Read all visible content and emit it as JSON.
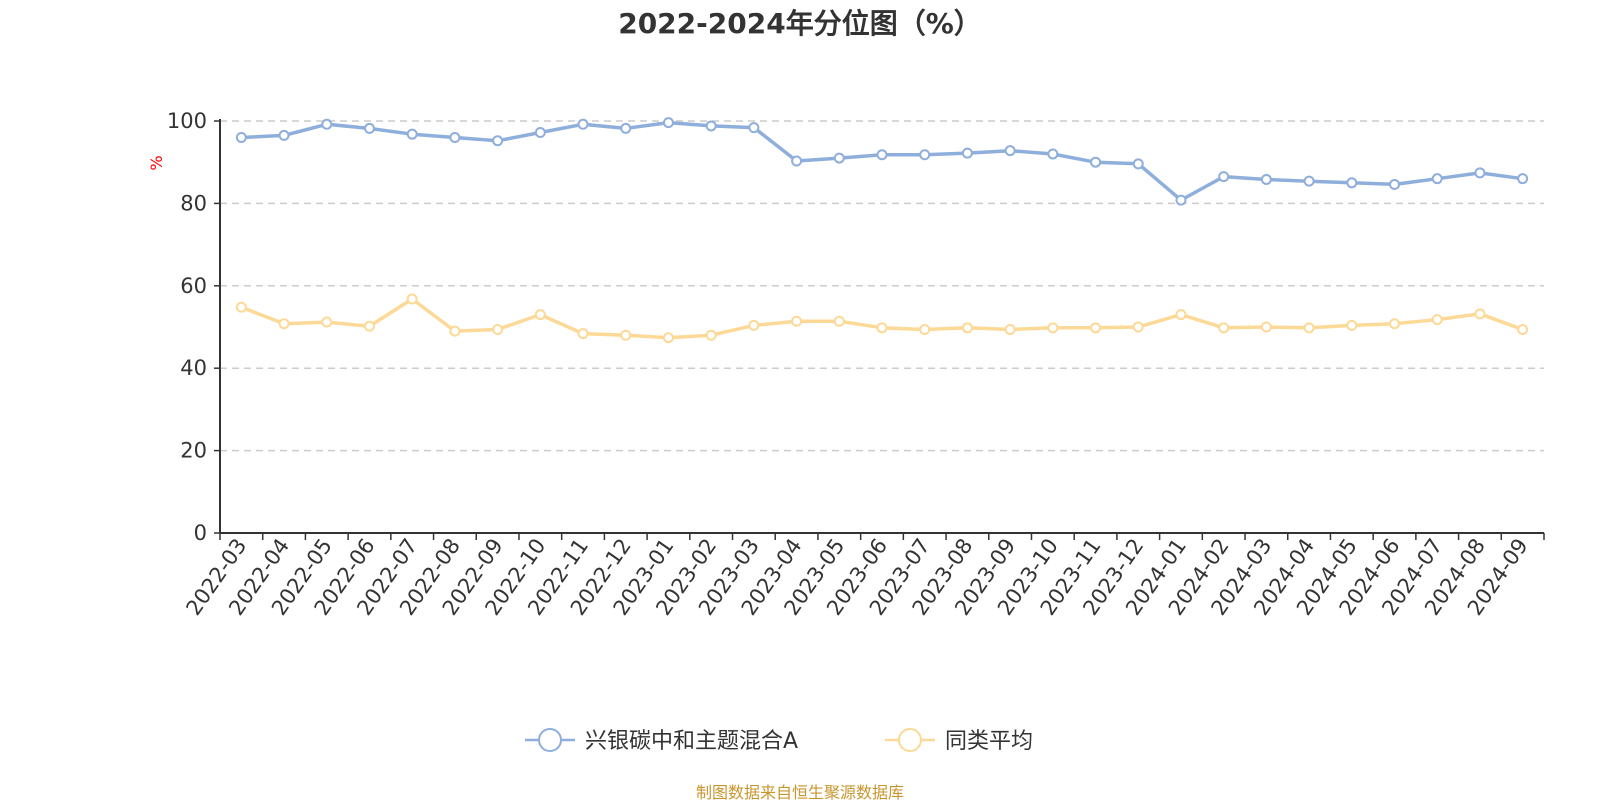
{
  "chart_data": {
    "type": "line",
    "title": "2022-2024年分位图（%）",
    "ylabel": "%",
    "ylim": [
      0,
      100
    ],
    "yticks": [
      0,
      20,
      40,
      60,
      80,
      100
    ],
    "grid": true,
    "legend_position": "bottom-center",
    "categories": [
      "2022-03",
      "2022-04",
      "2022-05",
      "2022-06",
      "2022-07",
      "2022-08",
      "2022-09",
      "2022-10",
      "2022-11",
      "2022-12",
      "2023-01",
      "2023-02",
      "2023-03",
      "2023-04",
      "2023-05",
      "2023-06",
      "2023-07",
      "2023-08",
      "2023-09",
      "2023-10",
      "2023-11",
      "2023-12",
      "2024-01",
      "2024-02",
      "2024-03",
      "2024-04",
      "2024-05",
      "2024-06",
      "2024-07",
      "2024-08",
      "2024-09"
    ],
    "series": [
      {
        "name": "兴银碳中和主题混合A",
        "color": "#8eaedb",
        "values": [
          96.0,
          96.5,
          99.2,
          98.2,
          96.8,
          96.0,
          95.2,
          97.2,
          99.2,
          98.2,
          99.6,
          98.8,
          98.4,
          90.3,
          91.0,
          91.8,
          91.8,
          92.2,
          92.8,
          92.0,
          90.0,
          89.6,
          80.8,
          86.5,
          85.8,
          85.4,
          85.0,
          84.6,
          86.0,
          87.4,
          86.0
        ]
      },
      {
        "name": "同类平均",
        "color": "#fcd996",
        "values": [
          54.8,
          50.8,
          51.2,
          50.2,
          56.8,
          49.0,
          49.4,
          53.0,
          48.4,
          48.0,
          47.4,
          48.0,
          50.4,
          51.4,
          51.4,
          49.8,
          49.4,
          49.8,
          49.4,
          49.8,
          49.8,
          50.0,
          53.0,
          49.8,
          50.0,
          49.8,
          50.4,
          50.8,
          51.8,
          53.2,
          49.4
        ]
      }
    ]
  },
  "colors": {
    "title": "#333333",
    "axis": "#333333",
    "grid": "#cccccc",
    "ylabel": "#ff0000",
    "source": "#c8962e"
  },
  "source_text": "制图数据来自恒生聚源数据库"
}
